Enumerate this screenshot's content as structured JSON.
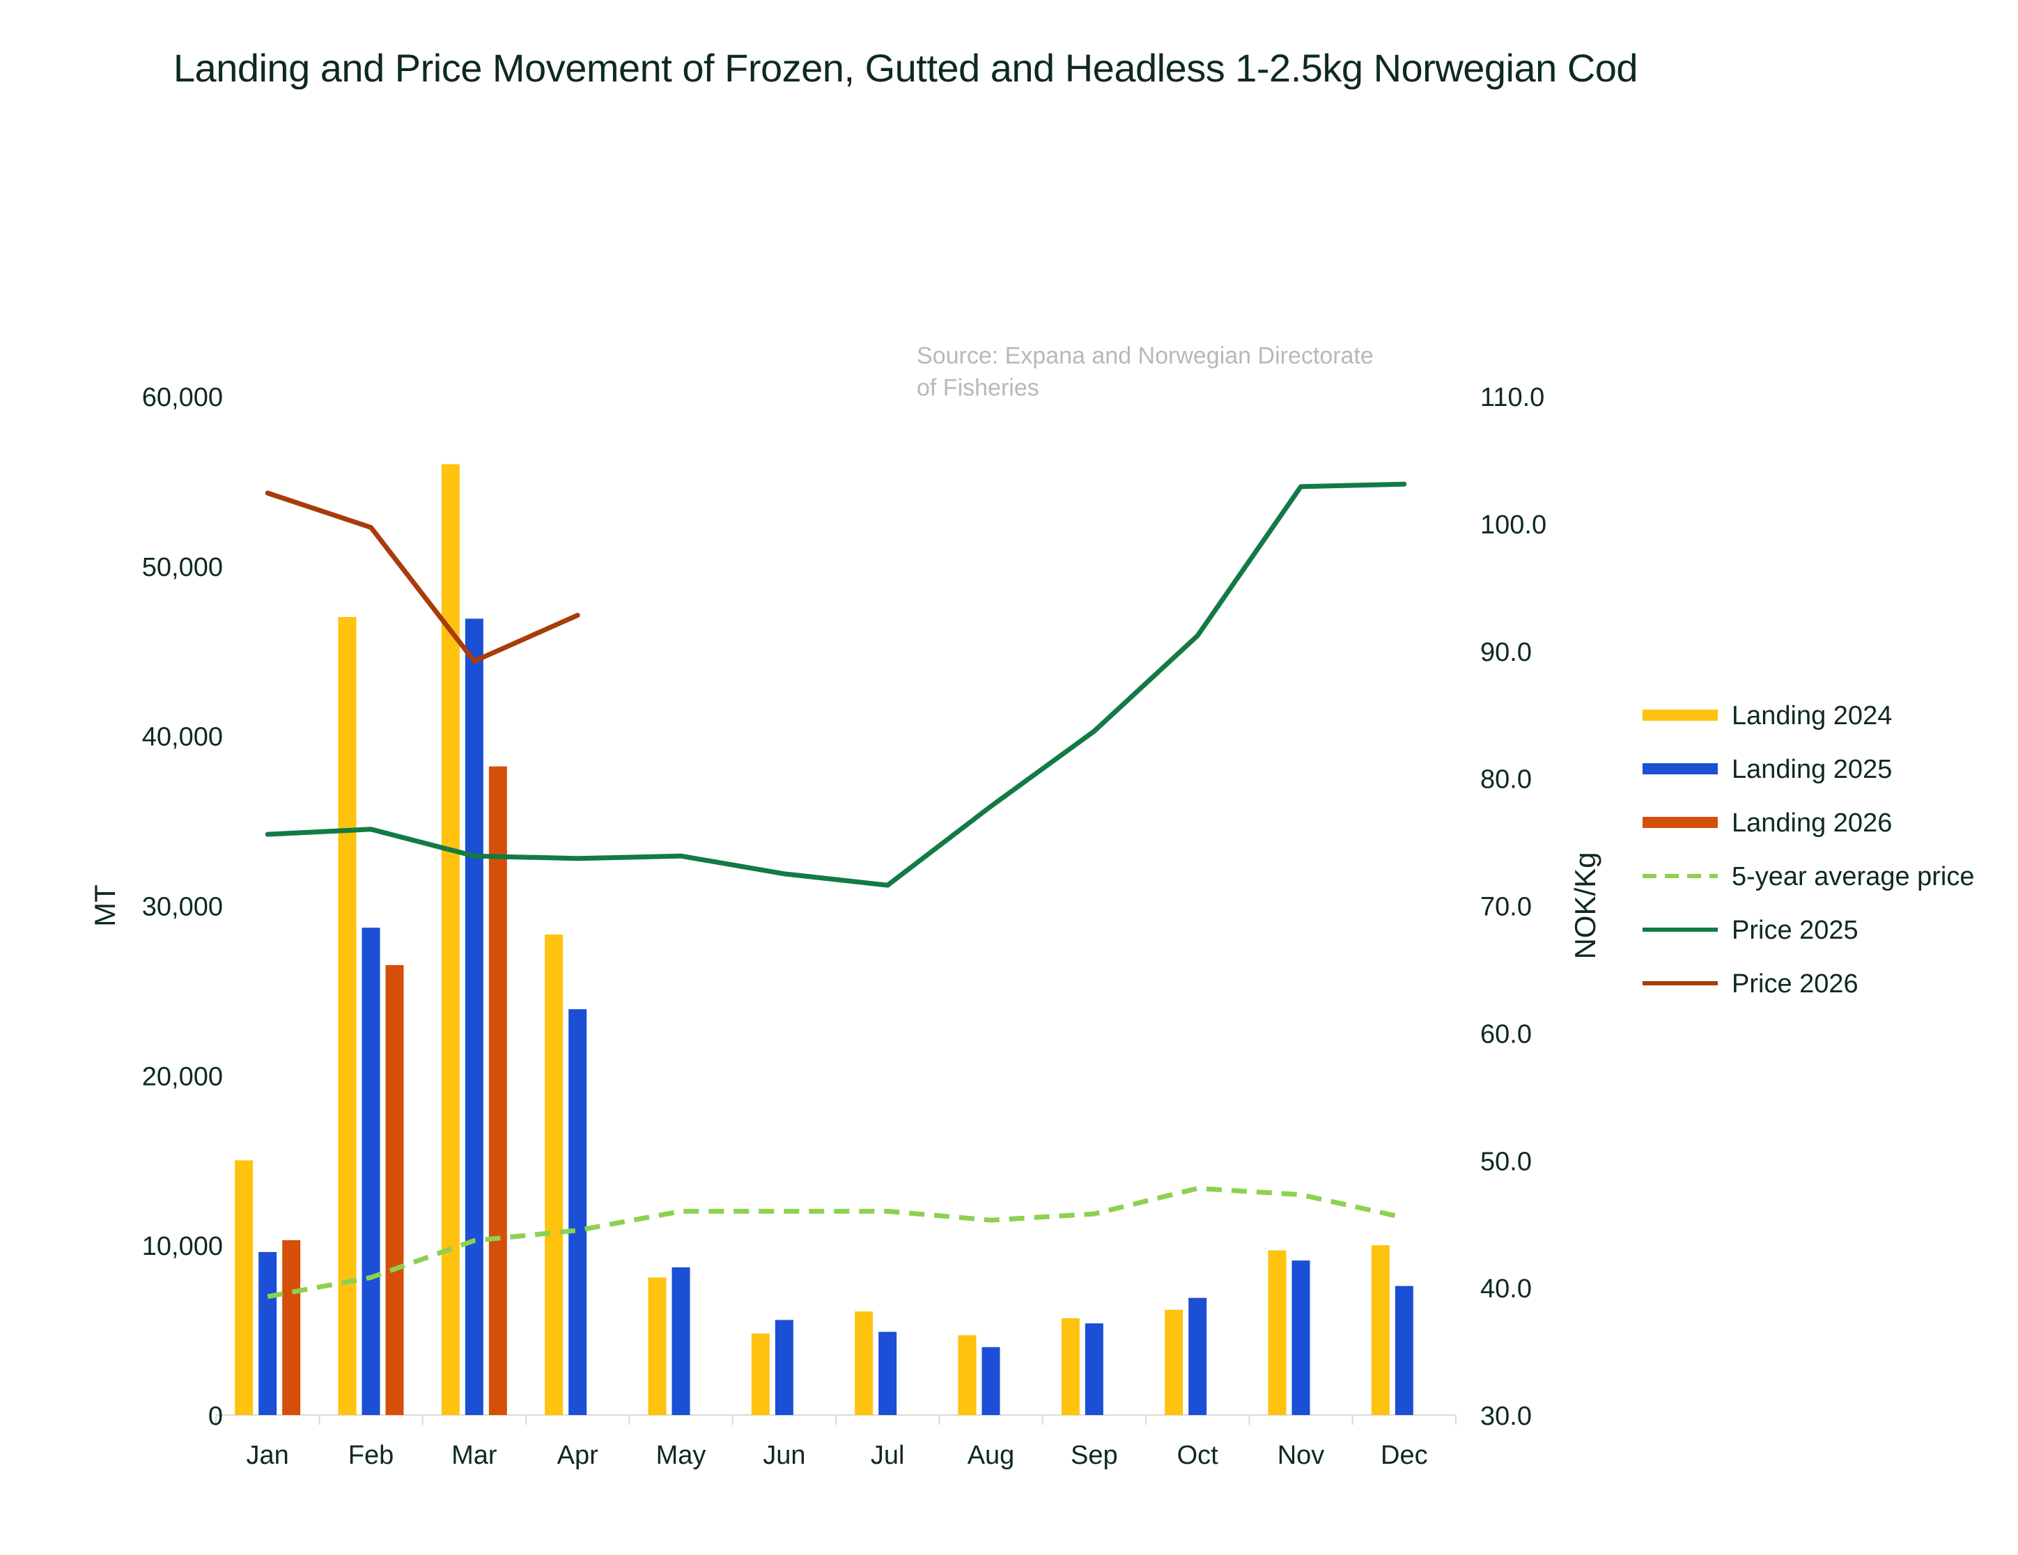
{
  "chart_data": {
    "type": "bar",
    "title": "Landing and Price Movement of Frozen, Gutted and Headless 1-2.5kg Norwegian Cod",
    "source_note": "Source: Expana and Norwegian Directorate of Fisheries",
    "categories": [
      "Jan",
      "Feb",
      "Mar",
      "Apr",
      "May",
      "Jun",
      "Jul",
      "Aug",
      "Sep",
      "Oct",
      "Nov",
      "Dec"
    ],
    "ylabel": "MT",
    "y2label": "NOK/Kg",
    "ylim": [
      0,
      60000
    ],
    "y2lim": [
      30,
      110
    ],
    "y_ticks": [
      "0",
      "10,000",
      "20,000",
      "30,000",
      "40,000",
      "50,000",
      "60,000"
    ],
    "y2_ticks": [
      "30.0",
      "40.0",
      "50.0",
      "60.0",
      "70.0",
      "80.0",
      "90.0",
      "100.0",
      "110.0"
    ],
    "grid": false,
    "legend_position": "right",
    "bar_series": [
      {
        "name": "Landing 2024",
        "color": "#FFC20E",
        "values": [
          15000,
          47000,
          56000,
          28300,
          8100,
          4800,
          6100,
          4700,
          5700,
          6200,
          9700,
          10000
        ]
      },
      {
        "name": "Landing 2025",
        "color": "#1A4FD6",
        "values": [
          9600,
          28700,
          46900,
          23900,
          8700,
          5600,
          4900,
          4000,
          5400,
          6900,
          9100,
          7600
        ]
      },
      {
        "name": "Landing 2026",
        "color": "#D64F0A",
        "values": [
          10300,
          26500,
          38200,
          null,
          null,
          null,
          null,
          null,
          null,
          null,
          null,
          null
        ]
      }
    ],
    "line_series": [
      {
        "name": "5-year average price",
        "color": "#8CD150",
        "dashed": true,
        "axis": "right",
        "values": [
          39.3,
          40.8,
          43.7,
          44.5,
          46.0,
          46.0,
          46.0,
          45.3,
          45.8,
          47.8,
          47.3,
          45.5
        ]
      },
      {
        "name": "Price 2025",
        "color": "#137A45",
        "dashed": false,
        "axis": "right",
        "values": [
          75.6,
          76.0,
          73.9,
          73.7,
          73.9,
          72.5,
          71.6,
          77.8,
          83.7,
          91.2,
          102.9,
          103.1
        ]
      },
      {
        "name": "Price 2026",
        "color": "#A83C0A",
        "dashed": false,
        "axis": "right",
        "values": [
          102.4,
          99.7,
          89.2,
          92.8,
          null,
          null,
          null,
          null,
          null,
          null,
          null,
          null
        ]
      }
    ]
  }
}
